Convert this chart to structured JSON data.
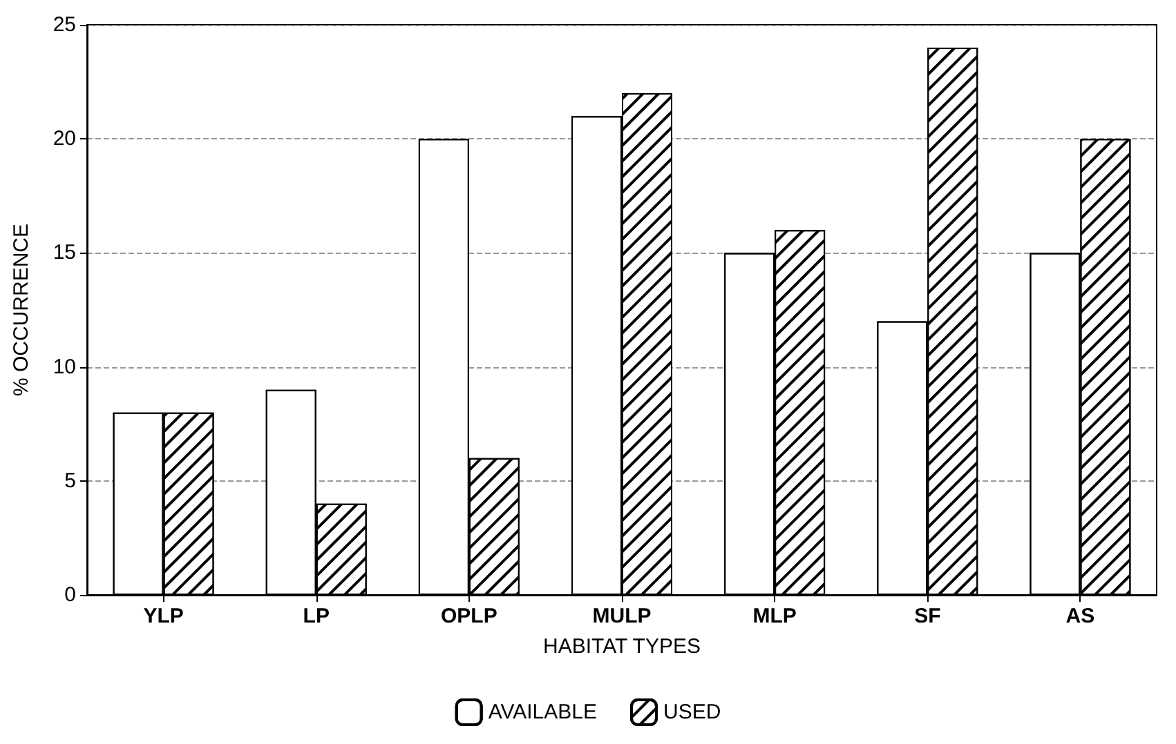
{
  "chart_data": {
    "type": "bar",
    "xlabel": "HABITAT TYPES",
    "ylabel": "% OCCURRENCE",
    "categories": [
      "YLP",
      "LP",
      "OPLP",
      "MULP",
      "MLP",
      "SF",
      "AS"
    ],
    "series": [
      {
        "name": "AVAILABLE",
        "color": "#ffffff",
        "values": [
          8,
          9,
          20,
          21,
          15,
          12,
          15
        ]
      },
      {
        "name": "USED",
        "color": "#ffffff",
        "values": [
          8,
          4,
          6,
          22,
          16,
          24,
          20
        ]
      }
    ],
    "ylim": [
      0,
      25
    ],
    "yticks": [
      0,
      5,
      10,
      15,
      20,
      25
    ],
    "grid": "y",
    "legend": "bottom"
  }
}
